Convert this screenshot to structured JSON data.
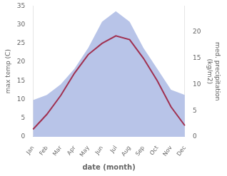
{
  "chart_data": {
    "type": "line",
    "categories": [
      "Jan",
      "Feb",
      "Mar",
      "Apr",
      "May",
      "Jun",
      "Jul",
      "Aug",
      "Sep",
      "Oct",
      "Nov",
      "Dec"
    ],
    "series": [
      {
        "type": "area",
        "color": "#b8c4e8",
        "axis": "y2",
        "values": [
          7,
          8,
          10,
          13,
          17,
          22,
          24,
          22,
          17,
          13,
          9,
          8
        ]
      },
      {
        "type": "line",
        "color": "#a03050",
        "values": [
          2,
          6,
          11,
          17,
          22,
          25,
          27,
          26,
          21,
          15,
          8,
          3
        ]
      }
    ],
    "xlabel": "date (month)",
    "ylabel": "max temp (C)",
    "y2label": "med. precipitation\n(kg/m2)",
    "ylim": [
      0,
      35
    ],
    "yticks": [
      0,
      5,
      10,
      15,
      20,
      25,
      30,
      35
    ],
    "y2lim": [
      0,
      25
    ],
    "y2ticks": [
      0,
      5,
      10,
      15,
      20
    ],
    "grid": false,
    "color": "#ffffff"
  }
}
